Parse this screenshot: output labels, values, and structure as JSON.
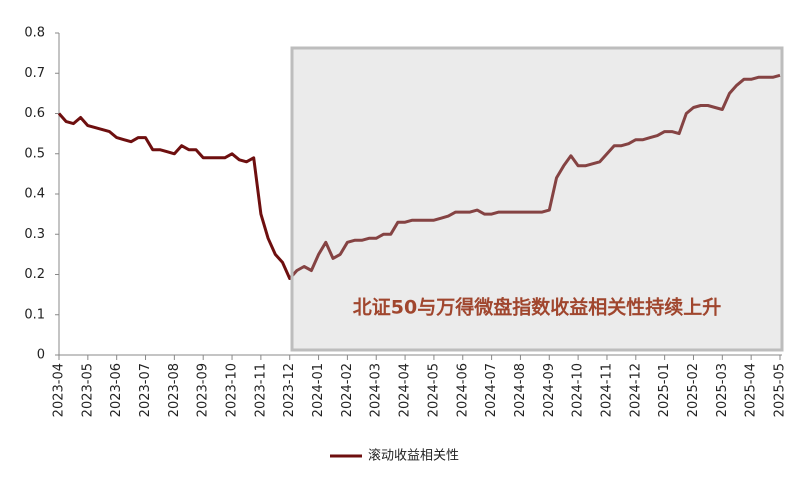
{
  "chart_data": {
    "type": "line",
    "annotation": "北证50与万得微盘指数收益相关性持续上升",
    "categories": [
      "2023-04",
      null,
      null,
      null,
      "2023-05",
      null,
      null,
      null,
      "2023-06",
      null,
      null,
      null,
      "2023-07",
      null,
      null,
      null,
      "2023-08",
      null,
      null,
      null,
      "2023-09",
      null,
      null,
      null,
      "2023-10",
      null,
      null,
      null,
      "2023-11",
      null,
      null,
      null,
      "2023-12",
      null,
      null,
      null,
      "2024-01",
      null,
      null,
      null,
      "2024-02",
      null,
      null,
      null,
      "2024-03",
      null,
      null,
      null,
      "2024-04",
      null,
      null,
      null,
      "2024-05",
      null,
      null,
      null,
      "2024-06",
      null,
      null,
      null,
      "2024-07",
      null,
      null,
      null,
      "2024-08",
      null,
      null,
      null,
      "2024-09",
      null,
      null,
      null,
      "2024-10",
      null,
      null,
      null,
      "2024-11",
      null,
      null,
      null,
      "2024-12",
      null,
      null,
      null,
      "2025-01",
      null,
      null,
      null,
      "2025-02",
      null,
      null,
      null,
      "2025-03",
      null,
      null,
      null,
      "2025-04",
      null,
      null,
      null,
      "2025-05"
    ],
    "series": [
      {
        "name": "滚动收益相关性",
        "color": "#6e0f0f",
        "values": [
          0.6,
          0.58,
          0.575,
          0.59,
          0.57,
          0.565,
          0.56,
          0.555,
          0.54,
          0.535,
          0.53,
          0.54,
          0.54,
          0.51,
          0.51,
          0.505,
          0.5,
          0.52,
          0.51,
          0.51,
          0.49,
          0.49,
          0.49,
          0.49,
          0.5,
          0.485,
          0.48,
          0.49,
          0.35,
          0.29,
          0.25,
          0.23,
          0.19,
          0.21,
          0.22,
          0.21,
          0.25,
          0.28,
          0.24,
          0.25,
          0.28,
          0.285,
          0.285,
          0.29,
          0.29,
          0.3,
          0.3,
          0.33,
          0.33,
          0.335,
          0.335,
          0.335,
          0.335,
          0.34,
          0.345,
          0.355,
          0.355,
          0.355,
          0.36,
          0.35,
          0.35,
          0.355,
          0.355,
          0.355,
          0.355,
          0.355,
          0.355,
          0.355,
          0.36,
          0.44,
          0.47,
          0.495,
          0.47,
          0.47,
          0.475,
          0.48,
          0.5,
          0.52,
          0.52,
          0.525,
          0.535,
          0.535,
          0.54,
          0.545,
          0.555,
          0.555,
          0.55,
          0.6,
          0.615,
          0.62,
          0.62,
          0.615,
          0.61,
          0.65,
          0.67,
          0.685,
          0.685,
          0.69,
          0.69,
          0.69,
          0.695
        ]
      }
    ],
    "ylim": [
      0,
      0.8
    ],
    "yticks": [
      0,
      0.1,
      0.2,
      0.3,
      0.4,
      0.5,
      0.6,
      0.7,
      0.8
    ]
  }
}
